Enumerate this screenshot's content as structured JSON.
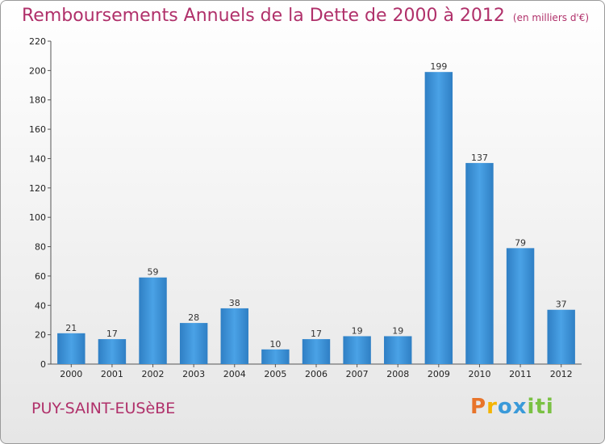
{
  "title": "Remboursements Annuels de la Dette de 2000 à 2012",
  "subtitle": "(en milliers d'€)",
  "town": "PUY-SAINT-EUSèBE",
  "logo": "Proxiti",
  "colors": {
    "bar": "#3a8fd6",
    "title": "#b0306a"
  },
  "chart_data": {
    "type": "bar",
    "title": "Remboursements Annuels de la Dette de 2000 à 2012",
    "subtitle": "(en milliers d'€)",
    "xlabel": "",
    "ylabel": "",
    "categories": [
      "2000",
      "2001",
      "2002",
      "2003",
      "2004",
      "2005",
      "2006",
      "2007",
      "2008",
      "2009",
      "2010",
      "2011",
      "2012"
    ],
    "values": [
      21,
      17,
      59,
      28,
      38,
      10,
      17,
      19,
      19,
      199,
      137,
      79,
      37
    ],
    "ylim": [
      0,
      220
    ],
    "yticks": [
      0,
      20,
      40,
      60,
      80,
      100,
      120,
      140,
      160,
      180,
      200,
      220
    ],
    "grid": false,
    "legend": "none"
  }
}
